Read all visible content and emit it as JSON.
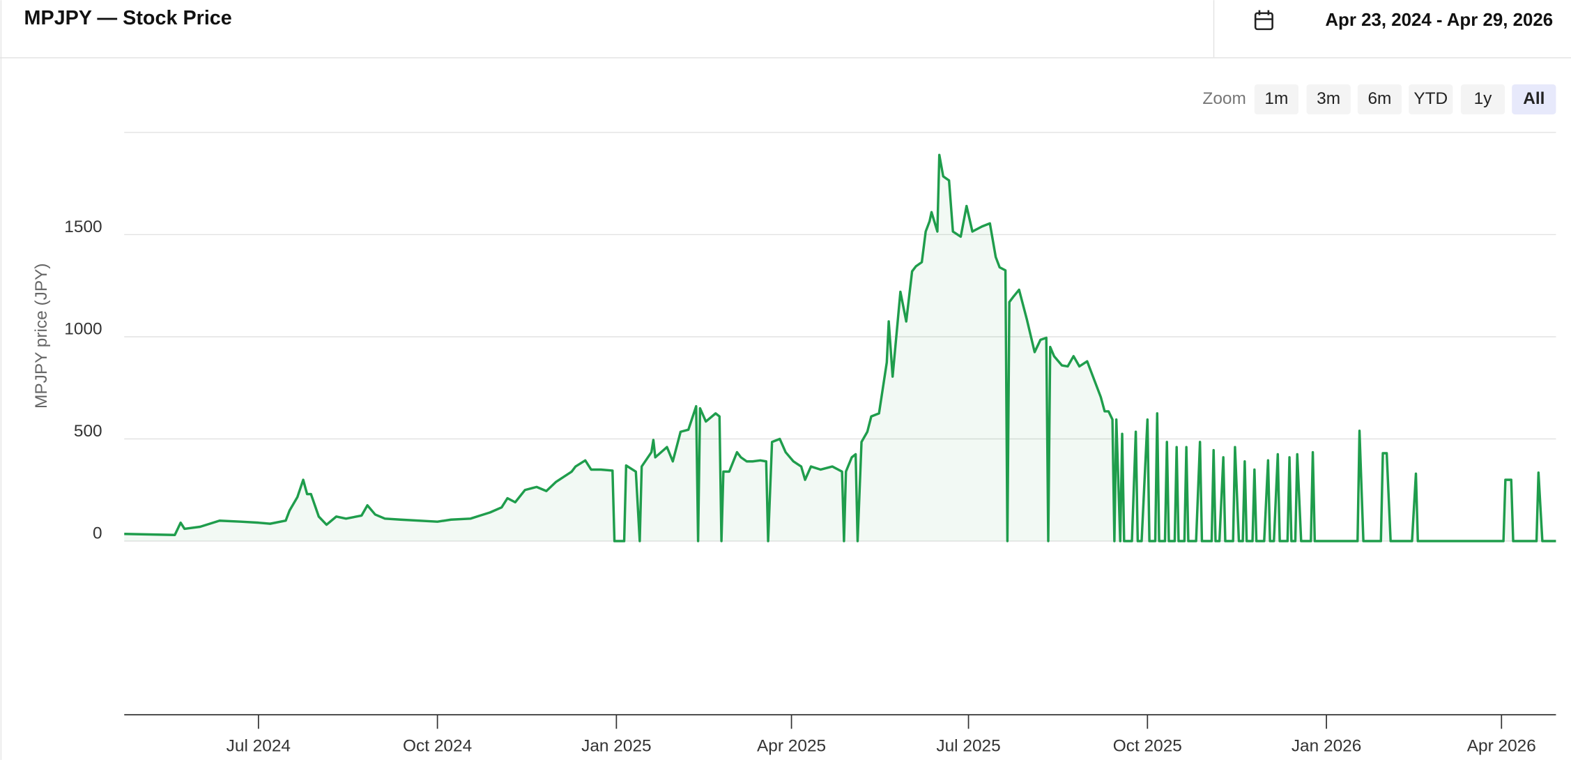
{
  "header": {
    "title": "MPJPY — Stock Price",
    "date_range": "Apr 23, 2024 - Apr 29, 2026"
  },
  "zoom": {
    "label": "Zoom",
    "buttons": [
      "1m",
      "3m",
      "6m",
      "YTD",
      "1y",
      "All"
    ],
    "active": 5
  },
  "chart_data": {
    "type": "area",
    "y_label": "MPJPY price (JPY)",
    "color": "#1f9d4c",
    "x": [
      "2024-04-23",
      "2024-05-19",
      "2024-05-22",
      "2024-05-24",
      "2024-06-01",
      "2024-06-11",
      "2024-06-22",
      "2024-07-01",
      "2024-07-07",
      "2024-07-15",
      "2024-07-17",
      "2024-07-21",
      "2024-07-24",
      "2024-07-26",
      "2024-07-28",
      "2024-08-01",
      "2024-08-05",
      "2024-08-10",
      "2024-08-15",
      "2024-08-23",
      "2024-08-26",
      "2024-08-30",
      "2024-09-04",
      "2024-09-12",
      "2024-10-01",
      "2024-10-08",
      "2024-10-18",
      "2024-10-23",
      "2024-10-28",
      "2024-11-03",
      "2024-11-06",
      "2024-11-10",
      "2024-11-15",
      "2024-11-21",
      "2024-11-26",
      "2024-12-01",
      "2024-12-09",
      "2024-12-11",
      "2024-12-16",
      "2024-12-19",
      "2024-12-24",
      "2024-12-30",
      "2024-12-31",
      "2025-01-05",
      "2025-01-06",
      "2025-01-11",
      "2025-01-13",
      "2025-01-14",
      "2025-01-19",
      "2025-01-20",
      "2025-01-21",
      "2025-01-27",
      "2025-01-30",
      "2025-02-03",
      "2025-02-07",
      "2025-02-11",
      "2025-02-12",
      "2025-02-13",
      "2025-02-16",
      "2025-02-21",
      "2025-02-23",
      "2025-02-24",
      "2025-02-25",
      "2025-02-28",
      "2025-03-04",
      "2025-03-06",
      "2025-03-09",
      "2025-03-12",
      "2025-03-16",
      "2025-03-19",
      "2025-03-20",
      "2025-03-22",
      "2025-03-26",
      "2025-03-29",
      "2025-04-02",
      "2025-04-06",
      "2025-04-08",
      "2025-04-11",
      "2025-04-16",
      "2025-04-22",
      "2025-04-27",
      "2025-04-28",
      "2025-04-29",
      "2025-05-02",
      "2025-05-04",
      "2025-05-05",
      "2025-05-07",
      "2025-05-10",
      "2025-05-12",
      "2025-05-16",
      "2025-05-20",
      "2025-05-21",
      "2025-05-23",
      "2025-05-27",
      "2025-05-30",
      "2025-06-02",
      "2025-06-04",
      "2025-06-07",
      "2025-06-09",
      "2025-06-11",
      "2025-06-12",
      "2025-06-15",
      "2025-06-16",
      "2025-06-18",
      "2025-06-21",
      "2025-06-23",
      "2025-06-27",
      "2025-06-30",
      "2025-07-03",
      "2025-07-08",
      "2025-07-12",
      "2025-07-15",
      "2025-07-17",
      "2025-07-20",
      "2025-07-21",
      "2025-07-22",
      "2025-07-24",
      "2025-07-27",
      "2025-07-31",
      "2025-08-04",
      "2025-08-07",
      "2025-08-10",
      "2025-08-11",
      "2025-08-12",
      "2025-08-14",
      "2025-08-18",
      "2025-08-21",
      "2025-08-24",
      "2025-08-27",
      "2025-08-31",
      "2025-09-02",
      "2025-09-07",
      "2025-09-09",
      "2025-09-11",
      "2025-09-13",
      "2025-09-14",
      "2025-09-15",
      "2025-09-17",
      "2025-09-18",
      "2025-09-19",
      "2025-09-23",
      "2025-09-25",
      "2025-09-26",
      "2025-09-28",
      "2025-10-01",
      "2025-10-02",
      "2025-10-05",
      "2025-10-06",
      "2025-10-07",
      "2025-10-10",
      "2025-10-11",
      "2025-10-12",
      "2025-10-15",
      "2025-10-16",
      "2025-10-17",
      "2025-10-20",
      "2025-10-21",
      "2025-10-22",
      "2025-10-26",
      "2025-10-28",
      "2025-10-29",
      "2025-11-03",
      "2025-11-04",
      "2025-11-05",
      "2025-11-07",
      "2025-11-09",
      "2025-11-10",
      "2025-11-14",
      "2025-11-15",
      "2025-11-17",
      "2025-11-19",
      "2025-11-20",
      "2025-11-21",
      "2025-11-24",
      "2025-11-25",
      "2025-11-26",
      "2025-11-30",
      "2025-12-02",
      "2025-12-03",
      "2025-12-05",
      "2025-12-07",
      "2025-12-08",
      "2025-12-12",
      "2025-12-13",
      "2025-12-14",
      "2025-12-16",
      "2025-12-17",
      "2025-12-19",
      "2025-12-24",
      "2025-12-25",
      "2025-12-26",
      "2026-01-17",
      "2026-01-18",
      "2026-01-20",
      "2026-01-29",
      "2026-01-30",
      "2026-02-01",
      "2026-02-03",
      "2026-02-14",
      "2026-02-16",
      "2026-02-17",
      "2026-04-02",
      "2026-04-03",
      "2026-04-06",
      "2026-04-07",
      "2026-04-19",
      "2026-04-20",
      "2026-04-22",
      "2026-04-29"
    ],
    "values": [
      35,
      30,
      90,
      60,
      70,
      100,
      95,
      90,
      85,
      100,
      150,
      215,
      300,
      230,
      230,
      120,
      80,
      120,
      110,
      125,
      175,
      130,
      110,
      105,
      95,
      105,
      110,
      125,
      140,
      165,
      210,
      190,
      250,
      265,
      245,
      290,
      340,
      365,
      395,
      350,
      350,
      345,
      0,
      0,
      370,
      340,
      0,
      365,
      435,
      495,
      410,
      460,
      390,
      535,
      545,
      660,
      0,
      650,
      585,
      625,
      610,
      0,
      340,
      340,
      435,
      410,
      390,
      390,
      395,
      390,
      0,
      485,
      500,
      435,
      390,
      365,
      300,
      365,
      350,
      365,
      340,
      0,
      340,
      410,
      425,
      0,
      485,
      535,
      610,
      625,
      875,
      1075,
      805,
      1220,
      1075,
      1320,
      1345,
      1365,
      1515,
      1565,
      1610,
      1515,
      1890,
      1785,
      1765,
      1515,
      1490,
      1640,
      1515,
      1540,
      1555,
      1390,
      1340,
      1325,
      0,
      1170,
      1195,
      1230,
      1085,
      925,
      985,
      995,
      0,
      950,
      905,
      860,
      855,
      905,
      855,
      880,
      830,
      705,
      635,
      635,
      595,
      0,
      595,
      0,
      525,
      0,
      0,
      535,
      0,
      0,
      595,
      0,
      0,
      625,
      0,
      0,
      485,
      0,
      0,
      460,
      0,
      0,
      460,
      0,
      0,
      485,
      0,
      0,
      445,
      0,
      0,
      410,
      0,
      0,
      460,
      0,
      0,
      390,
      0,
      0,
      350,
      0,
      0,
      395,
      0,
      0,
      425,
      0,
      0,
      410,
      0,
      0,
      425,
      0,
      0,
      435,
      0,
      0,
      540,
      0,
      0,
      430,
      430,
      0,
      0,
      330,
      0,
      0,
      300,
      300,
      0,
      0,
      335,
      0,
      0
    ],
    "xlim": [
      "2024-04-23",
      "2026-04-29"
    ],
    "xticks": [
      {
        "value": "2024-07-01",
        "label": "Jul 2024"
      },
      {
        "value": "2024-10-01",
        "label": "Oct 2024"
      },
      {
        "value": "2025-01-01",
        "label": "Jan 2025"
      },
      {
        "value": "2025-04-01",
        "label": "Apr 2025"
      },
      {
        "value": "2025-07-01",
        "label": "Jul 2025"
      },
      {
        "value": "2025-10-01",
        "label": "Oct 2025"
      },
      {
        "value": "2026-01-01",
        "label": "Jan 2026"
      },
      {
        "value": "2026-04-01",
        "label": "Apr 2026"
      }
    ],
    "ylim": [
      -850,
      2000
    ],
    "yticks": [
      0,
      500,
      1000,
      1500
    ],
    "grid": true
  }
}
